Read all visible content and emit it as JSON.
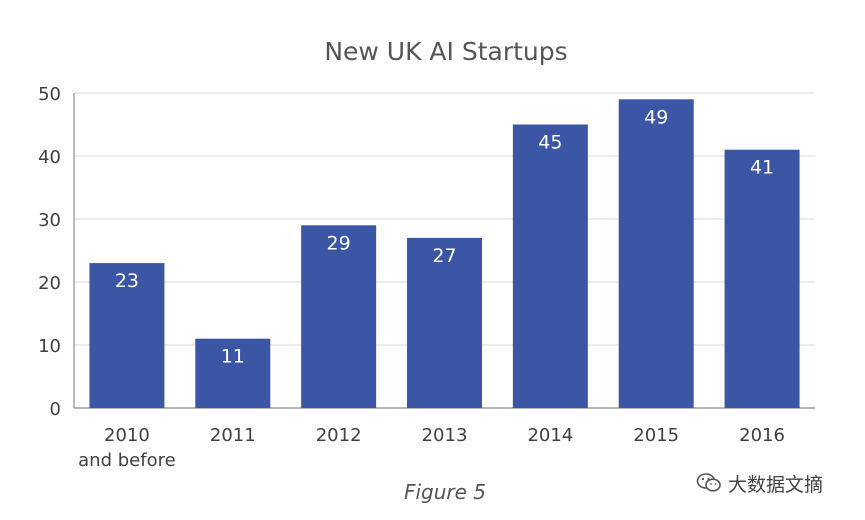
{
  "chart_data": {
    "type": "bar",
    "title": "New UK AI Startups",
    "xlabel": "",
    "ylabel": "",
    "categories": [
      [
        "2010",
        "and before"
      ],
      [
        "2011"
      ],
      [
        "2012"
      ],
      [
        "2013"
      ],
      [
        "2014"
      ],
      [
        "2015"
      ],
      [
        "2016"
      ]
    ],
    "values": [
      23,
      11,
      29,
      27,
      45,
      49,
      41
    ],
    "data_labels": [
      "23",
      "11",
      "29",
      "27",
      "45",
      "49",
      "41"
    ],
    "ylim": [
      0,
      50
    ],
    "yticks": [
      0,
      10,
      20,
      30,
      40,
      50
    ],
    "grid": true,
    "legend": "none",
    "colors": {
      "bar": "#3C56A6",
      "grid": "#D9D9D9",
      "axis": "#8C8C8C",
      "text": "#404040",
      "bar_label": "#FFFFFF"
    }
  },
  "caption": "Figure 5",
  "watermark": {
    "icon": "wechat-icon",
    "text": "大数据文摘"
  }
}
